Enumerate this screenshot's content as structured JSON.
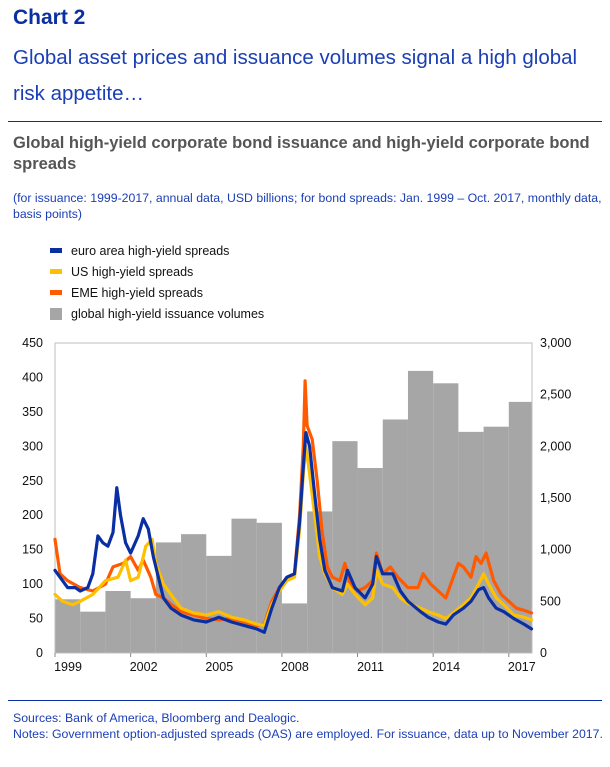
{
  "header": {
    "chart_number": "Chart 2",
    "headline": "Global asset prices and issuance volumes signal a high global risk appetite…"
  },
  "chart_title": "Global high-yield corporate bond issuance and high-yield corporate bond spreads",
  "subtitle": "(for issuance: 1999-2017, annual data, USD billions; for bond spreads: Jan. 1999 – Oct. 2017, monthly data, basis points)",
  "legend": [
    {
      "label": "euro area high-yield spreads",
      "color": "#0a2fa3",
      "kind": "line"
    },
    {
      "label": "US high-yield spreads",
      "color": "#ffc000",
      "kind": "line"
    },
    {
      "label": "EME high-yield spreads",
      "color": "#ff5a00",
      "kind": "line"
    },
    {
      "label": "global high-yield issuance volumes",
      "color": "#a6a6a6",
      "kind": "box"
    }
  ],
  "footer": {
    "sources": "Sources: Bank of America, Bloomberg and Dealogic.",
    "notes": "Notes: Government option-adjusted spreads (OAS) are employed. For issuance, data up to November 2017."
  },
  "chart_data": {
    "type": "bar+line",
    "x_range": [
      1999,
      2017.92
    ],
    "x_tick_labels": [
      "1999",
      "2002",
      "2005",
      "2008",
      "2011",
      "2014",
      "2017"
    ],
    "x_ticks": [
      1999,
      2002,
      2005,
      2008,
      2011,
      2014,
      2017
    ],
    "y_left": {
      "range": [
        0,
        450
      ],
      "ticks": [
        0,
        50,
        100,
        150,
        200,
        250,
        300,
        350,
        400,
        450
      ],
      "tick_labels": [
        "0",
        "50",
        "100",
        "150",
        "200",
        "250",
        "300",
        "350",
        "400",
        "450"
      ]
    },
    "y_right": {
      "range": [
        0,
        3000
      ],
      "ticks": [
        0,
        500,
        1000,
        1500,
        2000,
        2500,
        3000
      ],
      "tick_labels": [
        "0",
        "500",
        "1,000",
        "1,500",
        "2,000",
        "2,500",
        "3,000"
      ]
    },
    "bars": {
      "name": "global high-yield issuance volumes",
      "axis": "right",
      "years": [
        1999,
        2000,
        2001,
        2002,
        2003,
        2004,
        2005,
        2006,
        2007,
        2008,
        2009,
        2010,
        2011,
        2012,
        2013,
        2014,
        2015,
        2016,
        2017
      ],
      "values": [
        520,
        400,
        600,
        530,
        1070,
        1150,
        940,
        1300,
        1260,
        480,
        1370,
        2050,
        1790,
        2260,
        2730,
        2610,
        2140,
        2190,
        2430
      ]
    },
    "series": [
      {
        "name": "EME high-yield spreads",
        "axis": "left",
        "color": "#ff5a00",
        "points": [
          [
            1999.0,
            165
          ],
          [
            1999.2,
            115
          ],
          [
            1999.5,
            105
          ],
          [
            2000.0,
            95
          ],
          [
            2000.5,
            90
          ],
          [
            2001.0,
            100
          ],
          [
            2001.3,
            125
          ],
          [
            2001.7,
            130
          ],
          [
            2002.0,
            140
          ],
          [
            2002.3,
            120
          ],
          [
            2002.5,
            135
          ],
          [
            2002.8,
            110
          ],
          [
            2003.0,
            85
          ],
          [
            2003.3,
            80
          ],
          [
            2003.7,
            68
          ],
          [
            2004.0,
            60
          ],
          [
            2004.5,
            55
          ],
          [
            2005.0,
            50
          ],
          [
            2005.5,
            48
          ],
          [
            2006.0,
            50
          ],
          [
            2006.5,
            45
          ],
          [
            2007.0,
            40
          ],
          [
            2007.3,
            42
          ],
          [
            2007.6,
            75
          ],
          [
            2007.9,
            95
          ],
          [
            2008.2,
            110
          ],
          [
            2008.5,
            115
          ],
          [
            2008.7,
            200
          ],
          [
            2008.85,
            300
          ],
          [
            2008.92,
            395
          ],
          [
            2009.0,
            330
          ],
          [
            2009.2,
            310
          ],
          [
            2009.4,
            250
          ],
          [
            2009.6,
            175
          ],
          [
            2009.8,
            125
          ],
          [
            2010.0,
            110
          ],
          [
            2010.3,
            105
          ],
          [
            2010.5,
            130
          ],
          [
            2010.7,
            100
          ],
          [
            2011.0,
            90
          ],
          [
            2011.3,
            95
          ],
          [
            2011.6,
            105
          ],
          [
            2011.75,
            145
          ],
          [
            2012.0,
            115
          ],
          [
            2012.3,
            125
          ],
          [
            2012.6,
            110
          ],
          [
            2013.0,
            95
          ],
          [
            2013.4,
            95
          ],
          [
            2013.6,
            115
          ],
          [
            2013.9,
            100
          ],
          [
            2014.2,
            90
          ],
          [
            2014.5,
            80
          ],
          [
            2014.8,
            110
          ],
          [
            2015.0,
            130
          ],
          [
            2015.2,
            125
          ],
          [
            2015.5,
            110
          ],
          [
            2015.7,
            140
          ],
          [
            2015.9,
            130
          ],
          [
            2016.1,
            145
          ],
          [
            2016.4,
            105
          ],
          [
            2016.7,
            85
          ],
          [
            2017.0,
            75
          ],
          [
            2017.3,
            65
          ],
          [
            2017.6,
            62
          ],
          [
            2017.9,
            58
          ]
        ]
      },
      {
        "name": "US high-yield spreads",
        "axis": "left",
        "color": "#ffc000",
        "points": [
          [
            1999.0,
            85
          ],
          [
            1999.3,
            75
          ],
          [
            1999.7,
            70
          ],
          [
            2000.0,
            75
          ],
          [
            2000.5,
            85
          ],
          [
            2001.0,
            105
          ],
          [
            2001.5,
            110
          ],
          [
            2001.8,
            135
          ],
          [
            2002.0,
            105
          ],
          [
            2002.3,
            110
          ],
          [
            2002.6,
            155
          ],
          [
            2002.85,
            165
          ],
          [
            2003.0,
            130
          ],
          [
            2003.3,
            100
          ],
          [
            2003.7,
            80
          ],
          [
            2004.0,
            65
          ],
          [
            2004.5,
            58
          ],
          [
            2005.0,
            55
          ],
          [
            2005.5,
            60
          ],
          [
            2006.0,
            52
          ],
          [
            2006.5,
            48
          ],
          [
            2007.0,
            42
          ],
          [
            2007.3,
            40
          ],
          [
            2007.6,
            70
          ],
          [
            2007.9,
            90
          ],
          [
            2008.2,
            105
          ],
          [
            2008.5,
            110
          ],
          [
            2008.7,
            180
          ],
          [
            2008.85,
            260
          ],
          [
            2008.95,
            300
          ],
          [
            2009.1,
            260
          ],
          [
            2009.3,
            200
          ],
          [
            2009.5,
            140
          ],
          [
            2009.7,
            115
          ],
          [
            2010.0,
            95
          ],
          [
            2010.4,
            85
          ],
          [
            2010.6,
            100
          ],
          [
            2010.9,
            85
          ],
          [
            2011.3,
            70
          ],
          [
            2011.6,
            80
          ],
          [
            2011.75,
            120
          ],
          [
            2012.0,
            100
          ],
          [
            2012.4,
            95
          ],
          [
            2012.7,
            80
          ],
          [
            2013.0,
            72
          ],
          [
            2013.5,
            65
          ],
          [
            2013.8,
            60
          ],
          [
            2014.2,
            55
          ],
          [
            2014.5,
            50
          ],
          [
            2014.8,
            58
          ],
          [
            2015.2,
            70
          ],
          [
            2015.5,
            80
          ],
          [
            2015.8,
            100
          ],
          [
            2016.0,
            115
          ],
          [
            2016.2,
            100
          ],
          [
            2016.5,
            80
          ],
          [
            2016.8,
            70
          ],
          [
            2017.2,
            55
          ],
          [
            2017.6,
            52
          ],
          [
            2017.9,
            48
          ]
        ]
      },
      {
        "name": "euro area high-yield spreads",
        "axis": "left",
        "color": "#0a2fa3",
        "points": [
          [
            1999.0,
            120
          ],
          [
            1999.2,
            110
          ],
          [
            1999.5,
            95
          ],
          [
            1999.8,
            95
          ],
          [
            2000.0,
            90
          ],
          [
            2000.3,
            95
          ],
          [
            2000.5,
            115
          ],
          [
            2000.7,
            170
          ],
          [
            2000.9,
            160
          ],
          [
            2001.1,
            155
          ],
          [
            2001.3,
            175
          ],
          [
            2001.45,
            240
          ],
          [
            2001.6,
            200
          ],
          [
            2001.8,
            160
          ],
          [
            2002.0,
            145
          ],
          [
            2002.3,
            170
          ],
          [
            2002.5,
            195
          ],
          [
            2002.7,
            180
          ],
          [
            2002.9,
            140
          ],
          [
            2003.1,
            110
          ],
          [
            2003.3,
            80
          ],
          [
            2003.6,
            65
          ],
          [
            2004.0,
            55
          ],
          [
            2004.5,
            48
          ],
          [
            2005.0,
            45
          ],
          [
            2005.5,
            52
          ],
          [
            2006.0,
            45
          ],
          [
            2006.5,
            40
          ],
          [
            2007.0,
            35
          ],
          [
            2007.3,
            30
          ],
          [
            2007.6,
            65
          ],
          [
            2007.9,
            95
          ],
          [
            2008.2,
            110
          ],
          [
            2008.5,
            115
          ],
          [
            2008.7,
            190
          ],
          [
            2008.85,
            270
          ],
          [
            2008.95,
            320
          ],
          [
            2009.1,
            300
          ],
          [
            2009.3,
            230
          ],
          [
            2009.5,
            165
          ],
          [
            2009.7,
            120
          ],
          [
            2010.0,
            95
          ],
          [
            2010.4,
            90
          ],
          [
            2010.6,
            120
          ],
          [
            2010.9,
            95
          ],
          [
            2011.3,
            80
          ],
          [
            2011.6,
            100
          ],
          [
            2011.75,
            140
          ],
          [
            2012.0,
            115
          ],
          [
            2012.4,
            115
          ],
          [
            2012.7,
            90
          ],
          [
            2013.0,
            75
          ],
          [
            2013.5,
            60
          ],
          [
            2013.8,
            52
          ],
          [
            2014.2,
            45
          ],
          [
            2014.5,
            42
          ],
          [
            2014.8,
            55
          ],
          [
            2015.2,
            65
          ],
          [
            2015.5,
            75
          ],
          [
            2015.8,
            92
          ],
          [
            2016.0,
            95
          ],
          [
            2016.2,
            80
          ],
          [
            2016.5,
            65
          ],
          [
            2016.8,
            60
          ],
          [
            2017.2,
            50
          ],
          [
            2017.6,
            42
          ],
          [
            2017.9,
            35
          ]
        ]
      }
    ]
  }
}
